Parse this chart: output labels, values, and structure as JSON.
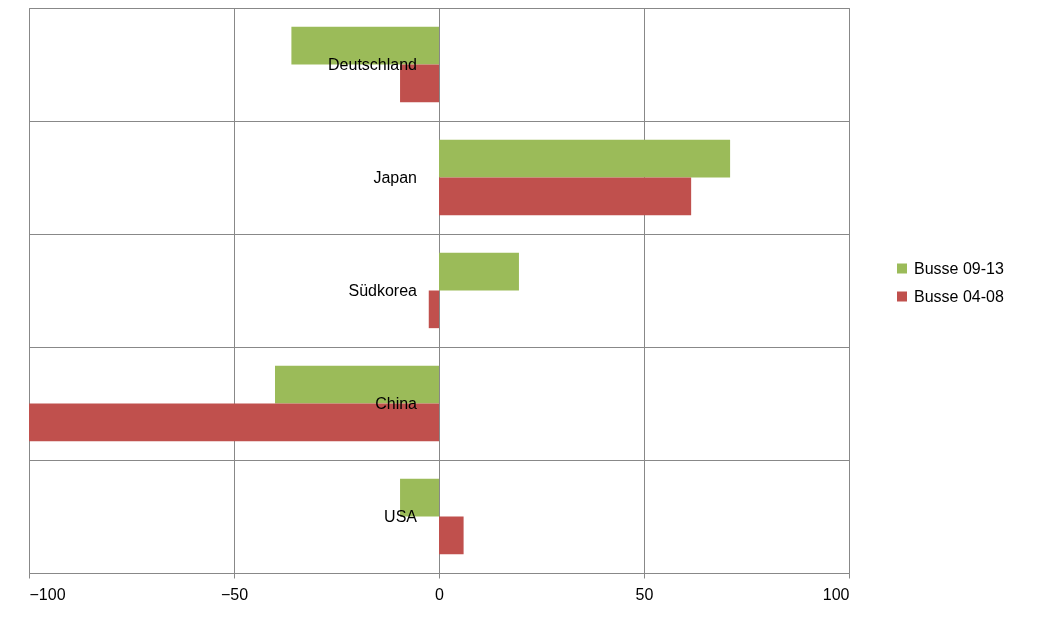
{
  "chart_data": {
    "type": "bar",
    "orientation": "horizontal",
    "categories": [
      "Deutschland",
      "Japan",
      "Südkorea",
      "China",
      "USA"
    ],
    "series": [
      {
        "name": "Busse 09-13",
        "color": "#9bbb59",
        "values": [
          -36,
          71,
          19.5,
          -40,
          -9.5
        ]
      },
      {
        "name": "Busse 04-08",
        "color": "#c0504d",
        "values": [
          -9.5,
          61.5,
          -2.5,
          -100,
          6
        ]
      }
    ],
    "xlim": [
      -100,
      100
    ],
    "xticks": [
      -100,
      -50,
      0,
      50,
      100
    ],
    "grid": true,
    "legend": "right"
  }
}
